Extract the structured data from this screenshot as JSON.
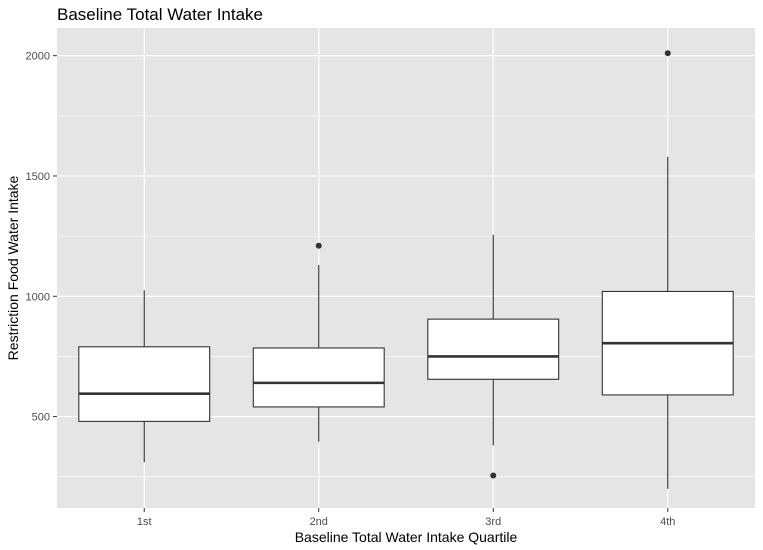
{
  "chart_data": {
    "type": "box",
    "title": "Baseline Total Water Intake",
    "xlabel": "Baseline Total Water Intake Quartile",
    "ylabel": "Restriction Food Water Intake",
    "categories": [
      "1st",
      "2nd",
      "3rd",
      "4th"
    ],
    "y_ticks": [
      "500",
      "1000",
      "1500",
      "2000"
    ],
    "ylim": [
      120,
      2115
    ],
    "grid": true,
    "boxes": [
      {
        "category": "1st",
        "whisker_low": 310,
        "q1": 480,
        "median": 595,
        "q3": 790,
        "whisker_high": 1025,
        "outliers": []
      },
      {
        "category": "2nd",
        "whisker_low": 395,
        "q1": 540,
        "median": 640,
        "q3": 785,
        "whisker_high": 1130,
        "outliers": [
          1210
        ]
      },
      {
        "category": "3rd",
        "whisker_low": 380,
        "q1": 655,
        "median": 750,
        "q3": 905,
        "whisker_high": 1255,
        "outliers": [
          255
        ]
      },
      {
        "category": "4th",
        "whisker_low": 200,
        "q1": 590,
        "median": 805,
        "q3": 1020,
        "whisker_high": 1580,
        "outliers": [
          2010
        ]
      }
    ],
    "colors": {
      "panel": "#e5e5e5",
      "grid": "#ffffff",
      "box_fill": "#ffffff",
      "box_stroke": "#333333",
      "point": "#333333"
    }
  }
}
